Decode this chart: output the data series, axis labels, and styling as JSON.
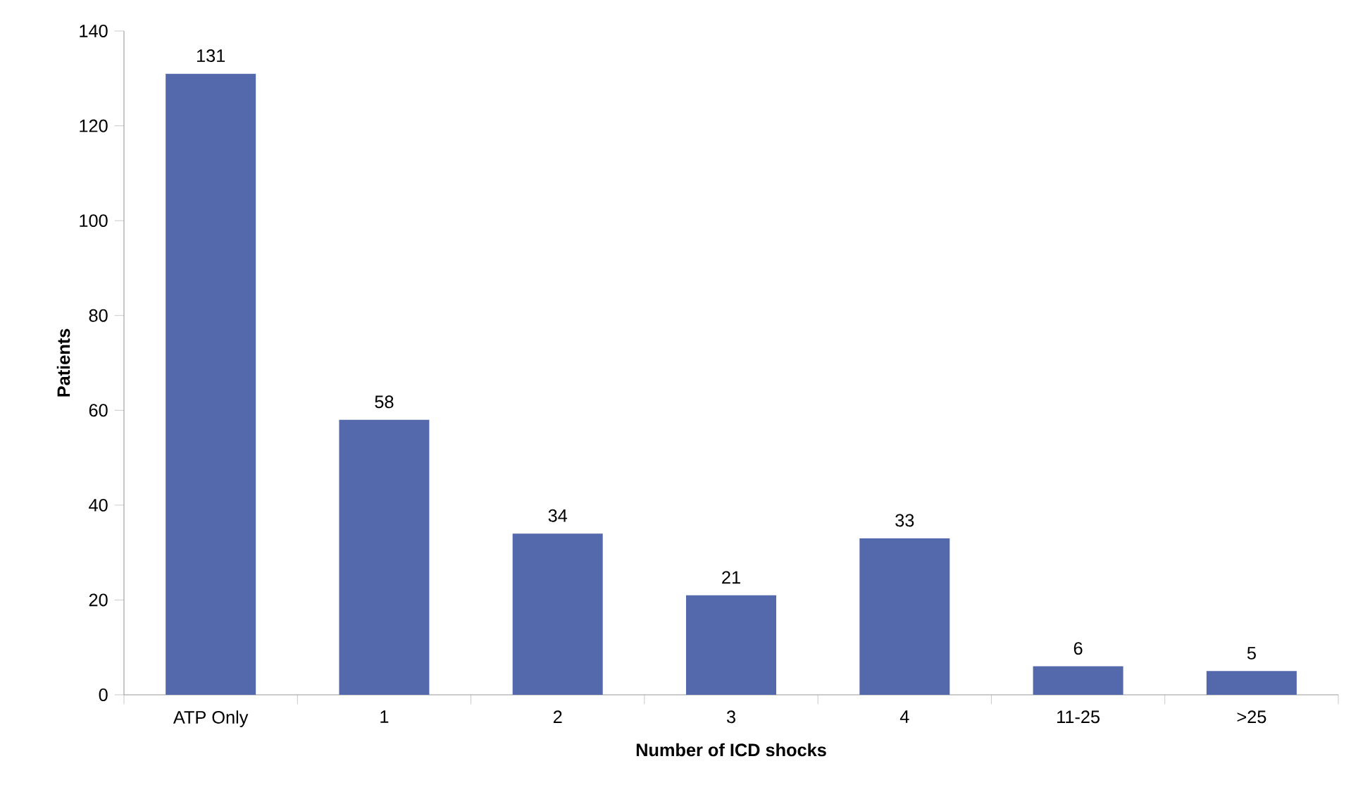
{
  "chart_data": {
    "type": "bar",
    "xlabel": "Number of ICD shocks",
    "ylabel": "Patients",
    "categories": [
      "ATP Only",
      "1",
      "2",
      "3",
      "4",
      "11-25",
      ">25"
    ],
    "values": [
      131,
      58,
      34,
      21,
      33,
      6,
      5
    ],
    "color": "#5469ac",
    "ylim": [
      0,
      140
    ],
    "yticks": [
      0,
      20,
      40,
      60,
      80,
      100,
      120,
      140
    ],
    "data_labels": true,
    "grid": false
  }
}
